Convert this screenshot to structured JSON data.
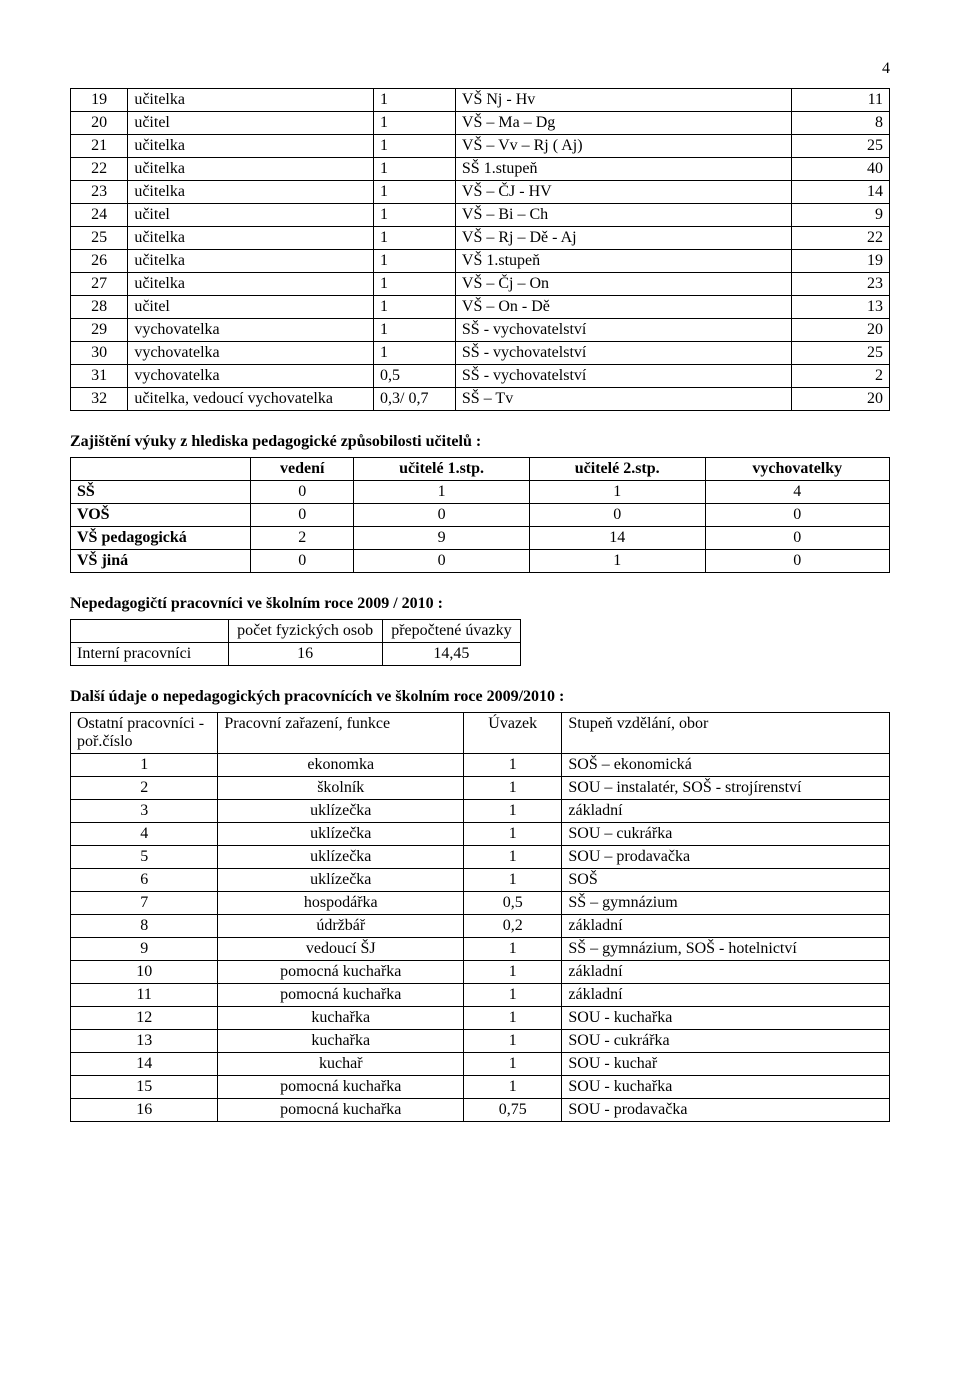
{
  "page_number": "4",
  "t1_rows": [
    {
      "n": "19",
      "role": "učitelka",
      "u": "1",
      "desc": "VŠ  Nj - Hv",
      "val": "11"
    },
    {
      "n": "20",
      "role": "učitel",
      "u": "1",
      "desc": "VŠ – Ma – Dg",
      "val": "8"
    },
    {
      "n": "21",
      "role": "učitelka",
      "u": "1",
      "desc": "VŠ – Vv – Rj ( Aj)",
      "val": "25"
    },
    {
      "n": "22",
      "role": "učitelka",
      "u": "1",
      "desc": "SŠ  1.stupeň",
      "val": "40"
    },
    {
      "n": "23",
      "role": "učitelka",
      "u": "1",
      "desc": "VŠ – ČJ - HV",
      "val": "14"
    },
    {
      "n": "24",
      "role": "učitel",
      "u": "1",
      "desc": "VŠ – Bi – Ch",
      "val": "9"
    },
    {
      "n": "25",
      "role": "učitelka",
      "u": "1",
      "desc": "VŠ – Rj – Dě - Aj",
      "val": "22"
    },
    {
      "n": "26",
      "role": "učitelka",
      "u": "1",
      "desc": "VŠ  1.stupeň",
      "val": "19"
    },
    {
      "n": "27",
      "role": "učitelka",
      "u": "1",
      "desc": "VŠ – Čj – On",
      "val": "23"
    },
    {
      "n": "28",
      "role": "učitel",
      "u": "1",
      "desc": "VŠ – On - Dě",
      "val": "13"
    },
    {
      "n": "29",
      "role": "vychovatelka",
      "u": "1",
      "desc": "SŠ - vychovatelství",
      "val": "20"
    },
    {
      "n": "30",
      "role": " vychovatelka",
      "u": "1",
      "desc": "SŠ - vychovatelství",
      "val": "25"
    },
    {
      "n": "31",
      "role": "vychovatelka",
      "u": "0,5",
      "desc": "SŠ - vychovatelství",
      "val": "2"
    },
    {
      "n": "32",
      "role": "učitelka,\nvedoucí vychovatelka",
      "u": "0,3/\n0,7",
      "desc": "SŠ – Tv",
      "val": "20"
    }
  ],
  "heading1": "Zajištění výuky z hlediska pedagogické způsobilosti učitelů :",
  "t2_cols": [
    "vedení",
    "učitelé 1.stp.",
    "učitelé 2.stp.",
    "vychovatelky"
  ],
  "t2_rows": [
    {
      "lbl": "SŠ",
      "v": [
        "0",
        "1",
        "1",
        "4"
      ]
    },
    {
      "lbl": "VOŠ",
      "v": [
        "0",
        "0",
        "0",
        "0"
      ]
    },
    {
      "lbl": "VŠ pedagogická",
      "v": [
        "2",
        "9",
        "14",
        "0"
      ]
    },
    {
      "lbl": "VŠ jiná",
      "v": [
        "0",
        "0",
        "1",
        "0"
      ]
    }
  ],
  "heading2": "Nepedagogičtí pracovníci ve školním roce 2009 / 2010 :",
  "t3_cols": [
    "počet fyzických\nosob",
    "přepočtené\núvazky"
  ],
  "t3_rows": [
    {
      "lbl": "Interní pracovníci",
      "v": [
        "16",
        "14,45"
      ]
    }
  ],
  "heading3": "Další údaje o nepedagogických pracovnících ve školním roce 2009/2010 :",
  "t4_head": {
    "c0": "Ostatní pracovníci\n- poř.číslo",
    "c1": "Pracovní zařazení, funkce",
    "c2": "Úvazek",
    "c3": "Stupeň vzdělání, obor"
  },
  "t4_rows": [
    {
      "n": "1",
      "r": "ekonomka",
      "u": "1",
      "d": "SOŠ – ekonomická"
    },
    {
      "n": "2",
      "r": "školník",
      "u": "1",
      "d": "SOU – instalatér, SOŠ - strojírenství"
    },
    {
      "n": "3",
      "r": "uklízečka",
      "u": "1",
      "d": "základní"
    },
    {
      "n": "4",
      "r": "uklízečka",
      "u": "1",
      "d": "SOU – cukrářka"
    },
    {
      "n": "5",
      "r": "uklízečka",
      "u": "1",
      "d": "SOU – prodavačka"
    },
    {
      "n": "6",
      "r": "uklízečka",
      "u": "1",
      "d": "SOŠ"
    },
    {
      "n": "7",
      "r": "hospodářka",
      "u": "0,5",
      "d": "SŠ – gymnázium"
    },
    {
      "n": "8",
      "r": "údržbář",
      "u": "0,2",
      "d": "základní"
    },
    {
      "n": "9",
      "r": "vedoucí ŠJ",
      "u": "1",
      "d": "SŠ – gymnázium, SOŠ - hotelnictví"
    },
    {
      "n": "10",
      "r": "pomocná kuchařka",
      "u": "1",
      "d": "základní"
    },
    {
      "n": "11",
      "r": "pomocná kuchařka",
      "u": "1",
      "d": "základní"
    },
    {
      "n": "12",
      "r": "kuchařka",
      "u": "1",
      "d": "SOU - kuchařka"
    },
    {
      "n": "13",
      "r": "kuchařka",
      "u": "1",
      "d": "SOU - cukrářka"
    },
    {
      "n": "14",
      "r": "kuchař",
      "u": "1",
      "d": "SOU - kuchař"
    },
    {
      "n": "15",
      "r": "pomocná kuchařka",
      "u": "1",
      "d": "SOU - kuchařka"
    },
    {
      "n": "16",
      "r": "pomocná kuchařka",
      "u": "0,75",
      "d": "SOU - prodavačka"
    }
  ]
}
